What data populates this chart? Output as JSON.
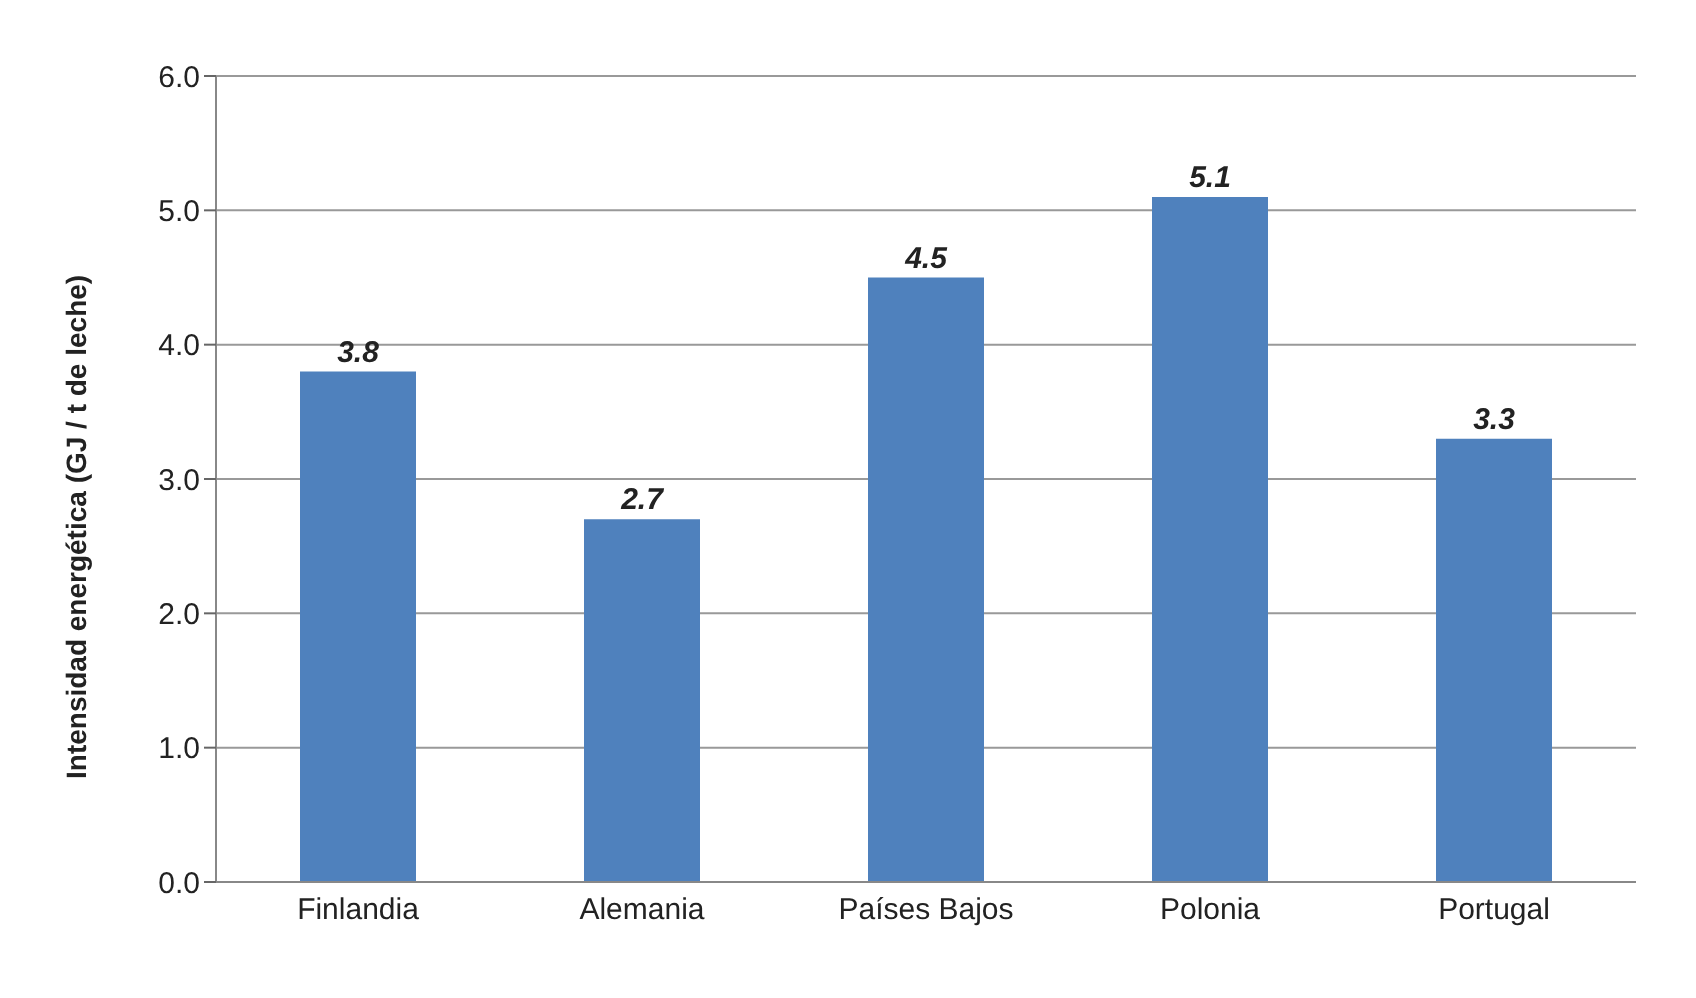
{
  "chart_data": {
    "type": "bar",
    "ylabel": "Intensidad energética (GJ / t de leche)",
    "categories": [
      "Finlandia",
      "Alemania",
      "Países Bajos",
      "Polonia",
      "Portugal"
    ],
    "values": [
      3.8,
      2.7,
      4.5,
      5.1,
      3.3
    ],
    "color": "#4f81bd",
    "ylim": [
      0,
      6
    ],
    "yticks": [
      {
        "value": 0,
        "label": "0.0"
      },
      {
        "value": 1,
        "label": "1.0"
      },
      {
        "value": 2,
        "label": "2.0"
      },
      {
        "value": 3,
        "label": "3.0"
      },
      {
        "value": 4,
        "label": "4.0"
      },
      {
        "value": 5,
        "label": "5.0"
      },
      {
        "value": 6,
        "label": "6.0"
      }
    ],
    "grid": "y",
    "data_labels": true,
    "legend": false
  }
}
